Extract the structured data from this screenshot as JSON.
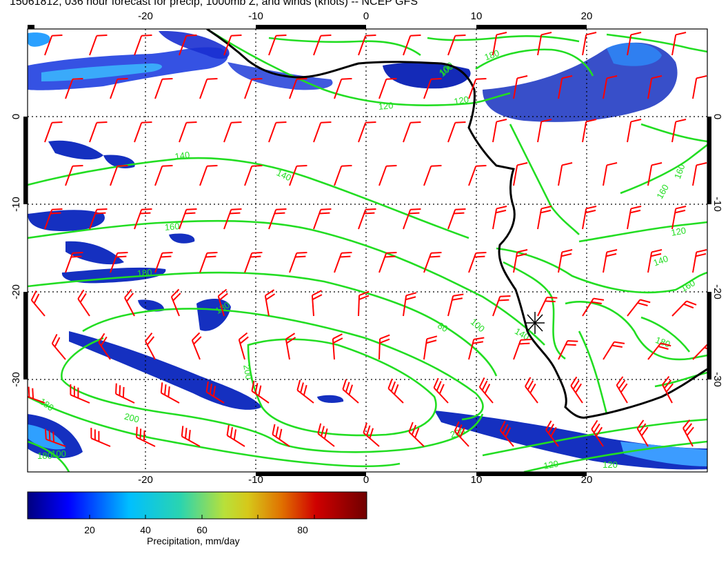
{
  "title": "15061812, 036 hour forecast for precip, 1000mb Z, and winds (knots) -- NCEP GFS",
  "map": {
    "lon_range": [
      -30,
      30
    ],
    "lat_range": [
      -40,
      10
    ],
    "lon_ticks": [
      "-20",
      "-10",
      "0",
      "10",
      "20"
    ],
    "lat_ticks": [
      "0",
      "-10",
      "-20",
      "-30"
    ],
    "grid": "dotted",
    "contour_color": "#22dd22",
    "wind_barb_color": "#ff0000",
    "coastline_color": "#000000",
    "contour_labels": [
      "120",
      "100",
      "140",
      "140",
      "160",
      "180",
      "180",
      "200",
      "200",
      "80",
      "100",
      "140",
      "120",
      "140",
      "160",
      "180",
      "180",
      "180",
      "200",
      "100",
      "120",
      "160",
      "160",
      "120",
      "100",
      "180",
      "120"
    ],
    "station_marker": "asterisk"
  },
  "colorbar": {
    "label": "Precipitation, mm/day",
    "ticks": [
      "20",
      "40",
      "60",
      "80"
    ],
    "range": [
      0,
      100
    ],
    "colors": [
      "#00007f",
      "#0000ff",
      "#00bfff",
      "#2ad4b0",
      "#b8e03a",
      "#d6c81a",
      "#e07000",
      "#d00000",
      "#700000"
    ]
  }
}
